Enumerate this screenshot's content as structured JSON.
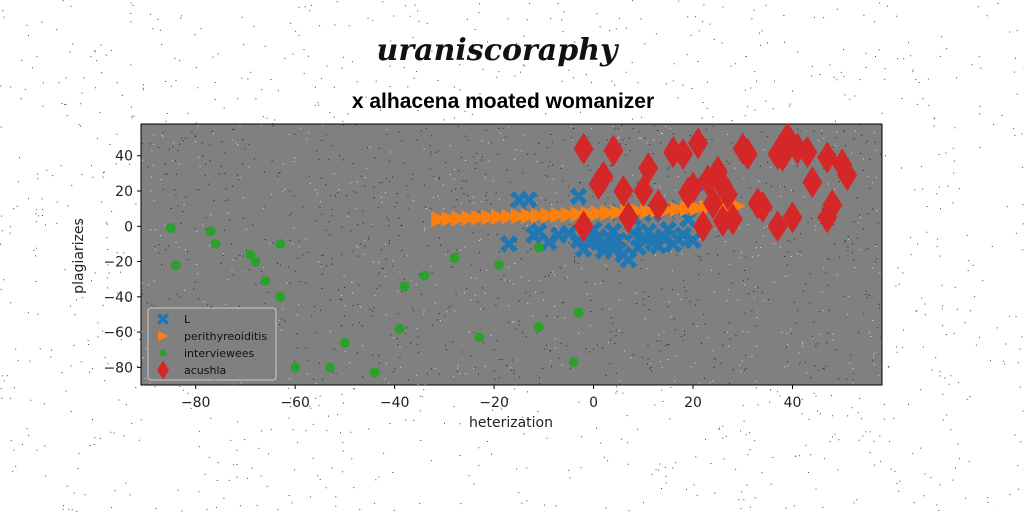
{
  "chart_data": {
    "type": "scatter",
    "suptitle": "uraniscoraphy",
    "title": "x alhacena moated womanizer",
    "xlabel": "heterization",
    "ylabel": "plagiarizes",
    "xlim": [
      -91,
      58
    ],
    "ylim": [
      -90,
      58
    ],
    "xticks": [
      -80,
      -60,
      -40,
      -20,
      0,
      20,
      40
    ],
    "yticks": [
      -80,
      -60,
      -40,
      -20,
      0,
      20,
      40
    ],
    "grid": false,
    "legend": "lower-left",
    "colors": {
      "plot_bg": "#808080",
      "figure_bg": "#ffffff"
    },
    "series": [
      {
        "name": "L",
        "marker": "X",
        "color": "#1f77b4",
        "x": [
          -17,
          -13,
          -11,
          -9,
          -7,
          -5,
          -3,
          -3,
          -2,
          -1,
          0,
          1,
          2,
          3,
          4,
          5,
          6,
          7,
          8,
          9,
          10,
          11,
          12,
          13,
          14,
          15,
          16,
          17,
          18,
          19,
          20,
          21,
          -15,
          -12,
          4,
          8,
          12,
          5,
          2,
          15
        ],
        "y": [
          -10,
          15,
          -3,
          -9,
          -5,
          -4,
          17,
          -8,
          -13,
          -9,
          -2,
          -7,
          -10,
          -6,
          -13,
          -8,
          -16,
          -19,
          -4,
          -12,
          -6,
          -3,
          -9,
          -11,
          -6,
          -2,
          -10,
          -7,
          -5,
          4,
          -8,
          25,
          15,
          -5,
          -3,
          5,
          7,
          8,
          -14,
          10
        ]
      },
      {
        "name": "perithyreoiditis",
        "marker": ">",
        "color": "#ff7f0e",
        "x": [
          -31,
          -29,
          -27,
          -25,
          -23,
          -21,
          -19,
          -17,
          -15,
          -13,
          -11,
          -9,
          -7,
          -5,
          -3,
          -1,
          1,
          3,
          5,
          7,
          9,
          11,
          13,
          15,
          17,
          19,
          21,
          23,
          25,
          27,
          29
        ],
        "y": [
          4.0,
          4.2,
          4.4,
          4.6,
          4.8,
          5.0,
          5.2,
          5.4,
          5.6,
          5.8,
          6.0,
          6.2,
          6.4,
          6.6,
          6.8,
          7.0,
          7.3,
          7.6,
          7.9,
          8.2,
          8.5,
          8.8,
          9.1,
          9.4,
          9.7,
          10.0,
          10.3,
          10.6,
          10.9,
          11.2,
          11.5
        ]
      },
      {
        "name": "interviewees",
        "marker": "o",
        "color": "#2ca02c",
        "x": [
          -85,
          -84,
          -77,
          -76,
          -69,
          -68,
          -66,
          -63,
          -63,
          -60,
          -53,
          -50,
          -44,
          -38,
          -39,
          -34,
          -28,
          -23,
          -19,
          -11,
          -11,
          -3,
          -4
        ],
        "y": [
          -1,
          -22,
          -3,
          -10,
          -16,
          -20,
          -31,
          -10,
          -40,
          -80,
          -80,
          -66,
          -83,
          -34,
          -58,
          -28,
          -18,
          -63,
          -22,
          -57,
          -12,
          -49,
          -77
        ]
      },
      {
        "name": "acushla",
        "marker": "D",
        "color": "#d62728",
        "x": [
          -2,
          -2,
          1,
          2,
          4,
          6,
          7,
          10,
          11,
          18,
          19,
          21,
          22,
          23,
          24,
          25,
          26,
          27,
          28,
          30,
          31,
          33,
          34,
          37,
          37,
          38,
          39,
          40,
          41,
          43,
          44,
          47,
          47,
          48,
          50,
          51,
          20,
          26,
          16,
          13
        ],
        "y": [
          44,
          0,
          24,
          28,
          43,
          20,
          5,
          20,
          33,
          41,
          19,
          47,
          0,
          26,
          13,
          31,
          23,
          18,
          4,
          44,
          41,
          13,
          11,
          0,
          41,
          40,
          50,
          5,
          44,
          42,
          25,
          39,
          5,
          12,
          35,
          29,
          22,
          3,
          42,
          12
        ]
      }
    ]
  }
}
